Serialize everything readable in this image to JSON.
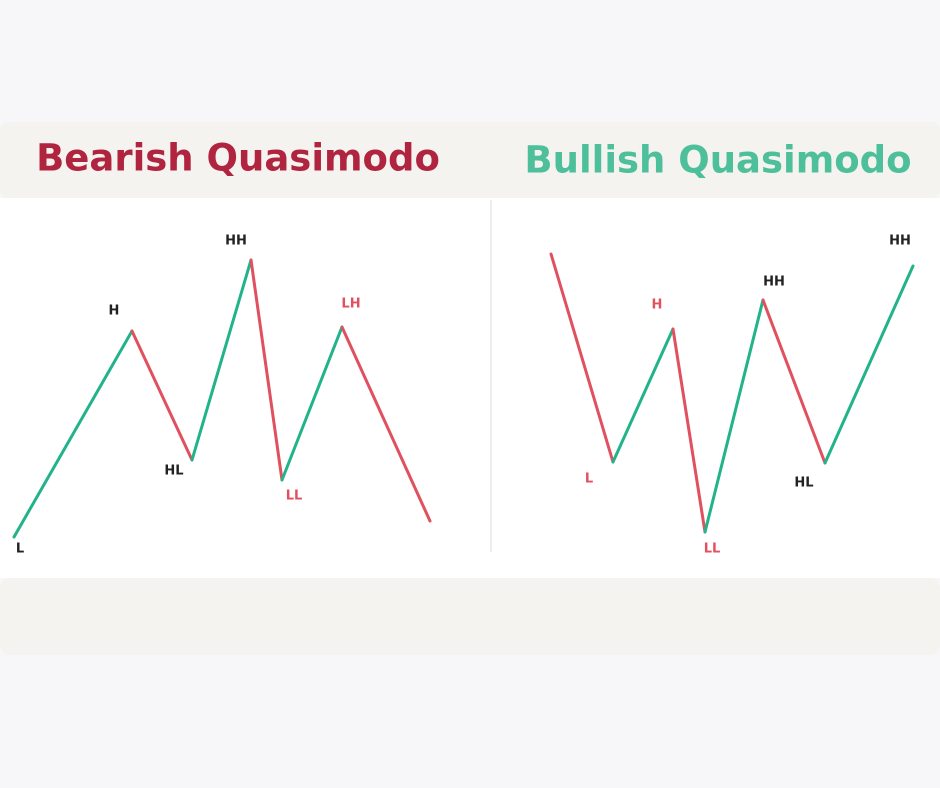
{
  "left": {
    "title": "Bearish Quasimodo",
    "labels": [
      "L",
      "H",
      "HL",
      "HH",
      "LL",
      "LH"
    ]
  },
  "right": {
    "title": "Bullish Quasimodo",
    "labels": [
      "L",
      "H",
      "LL",
      "HH",
      "HL",
      "HH"
    ]
  }
}
